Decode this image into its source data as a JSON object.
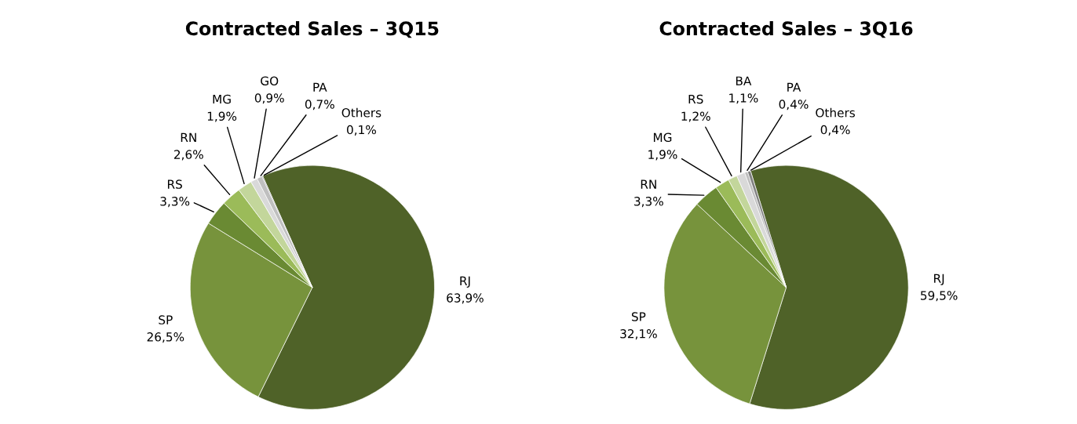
{
  "chart_data": [
    {
      "type": "pie",
      "title": "Contracted Sales – 3Q15",
      "categories": [
        "RJ",
        "SP",
        "RS",
        "RN",
        "MG",
        "GO",
        "PA",
        "Others"
      ],
      "values": [
        63.9,
        26.5,
        3.3,
        2.6,
        1.9,
        0.9,
        0.7,
        0.1
      ],
      "value_labels": [
        "63,9%",
        "26,5%",
        "3,3%",
        "2,6%",
        "1,9%",
        "0,9%",
        "0,7%",
        "0,1%"
      ],
      "colors": [
        "#4f6228",
        "#77933c",
        "#6a8a33",
        "#9bbb59",
        "#c3d69b",
        "#d9d9d9",
        "#bfbfbf",
        "#808080"
      ]
    },
    {
      "type": "pie",
      "title": "Contracted Sales – 3Q16",
      "categories": [
        "RJ",
        "SP",
        "RN",
        "MG",
        "RS",
        "BA",
        "PA",
        "Others"
      ],
      "values": [
        59.5,
        32.1,
        3.3,
        1.9,
        1.2,
        1.1,
        0.4,
        0.4
      ],
      "value_labels": [
        "59,5%",
        "32,1%",
        "3,3%",
        "1,9%",
        "1,2%",
        "1,1%",
        "0,4%",
        "0,4%"
      ],
      "colors": [
        "#4f6228",
        "#77933c",
        "#6a8a33",
        "#9bbb59",
        "#c3d69b",
        "#d9d9d9",
        "#bfbfbf",
        "#808080"
      ]
    }
  ]
}
